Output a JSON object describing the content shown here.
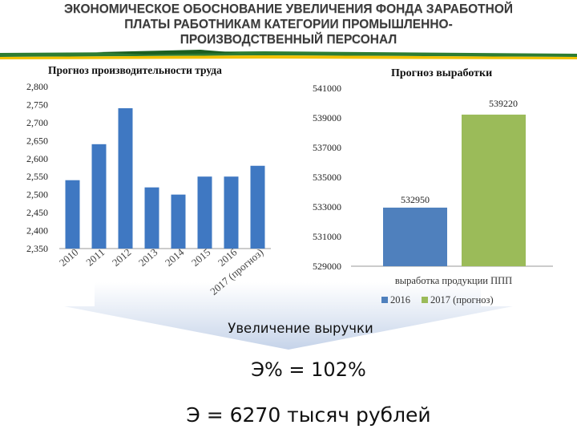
{
  "title_lines": [
    "ЭКОНОМИЧЕСКОЕ ОБОСНОВАНИЕ УВЕЛИЧЕНИЯ ФОНДА ЗАРАБОТНОЙ",
    "ПЛАТЫ РАБОТНИКАМ КАТЕГОРИИ ПРОМЫШЛЕННО-",
    "ПРОИЗВОДСТВЕННЫЙ ПЕРСОНАЛ"
  ],
  "colors": {
    "left_bars": "#3f78c2",
    "bar_2016": "#4f80bd",
    "bar_2017": "#9bbb59",
    "arrow": "#c5d3e9"
  },
  "chart_data": [
    {
      "type": "bar",
      "title": "Прогноз производительности труда",
      "categories": [
        "2010",
        "2011",
        "2012",
        "2013",
        "2014",
        "2015",
        "2016",
        "2017 (прогноз)"
      ],
      "values": [
        2.54,
        2.64,
        2.74,
        2.52,
        2.5,
        2.55,
        2.55,
        2.58
      ],
      "yticks": [
        "2,800",
        "2,750",
        "2,700",
        "2,650",
        "2,600",
        "2,550",
        "2,500",
        "2,450",
        "2,400",
        "2,350"
      ],
      "ylim": [
        2.35,
        2.8
      ],
      "xlabel": "",
      "ylabel": "",
      "grid": false
    },
    {
      "type": "bar",
      "title": "Прогноз выработки",
      "categories": [
        "выработка продукции ППП"
      ],
      "series": [
        {
          "name": "2016",
          "values": [
            532950
          ],
          "label": "532950"
        },
        {
          "name": "2017 (прогноз)",
          "values": [
            539220
          ],
          "label": "539220"
        }
      ],
      "yticks": [
        "541000",
        "539000",
        "537000",
        "535000",
        "533000",
        "531000",
        "529000"
      ],
      "ylim": [
        529000,
        541000
      ],
      "legend_position": "bottom",
      "grid": false
    }
  ],
  "texts": {
    "revenue_heading": "Увеличение выручки",
    "efficiency_percent": "Э% = 102%",
    "efficiency_absolute": "Э  = 6270 тысяч рублей"
  }
}
